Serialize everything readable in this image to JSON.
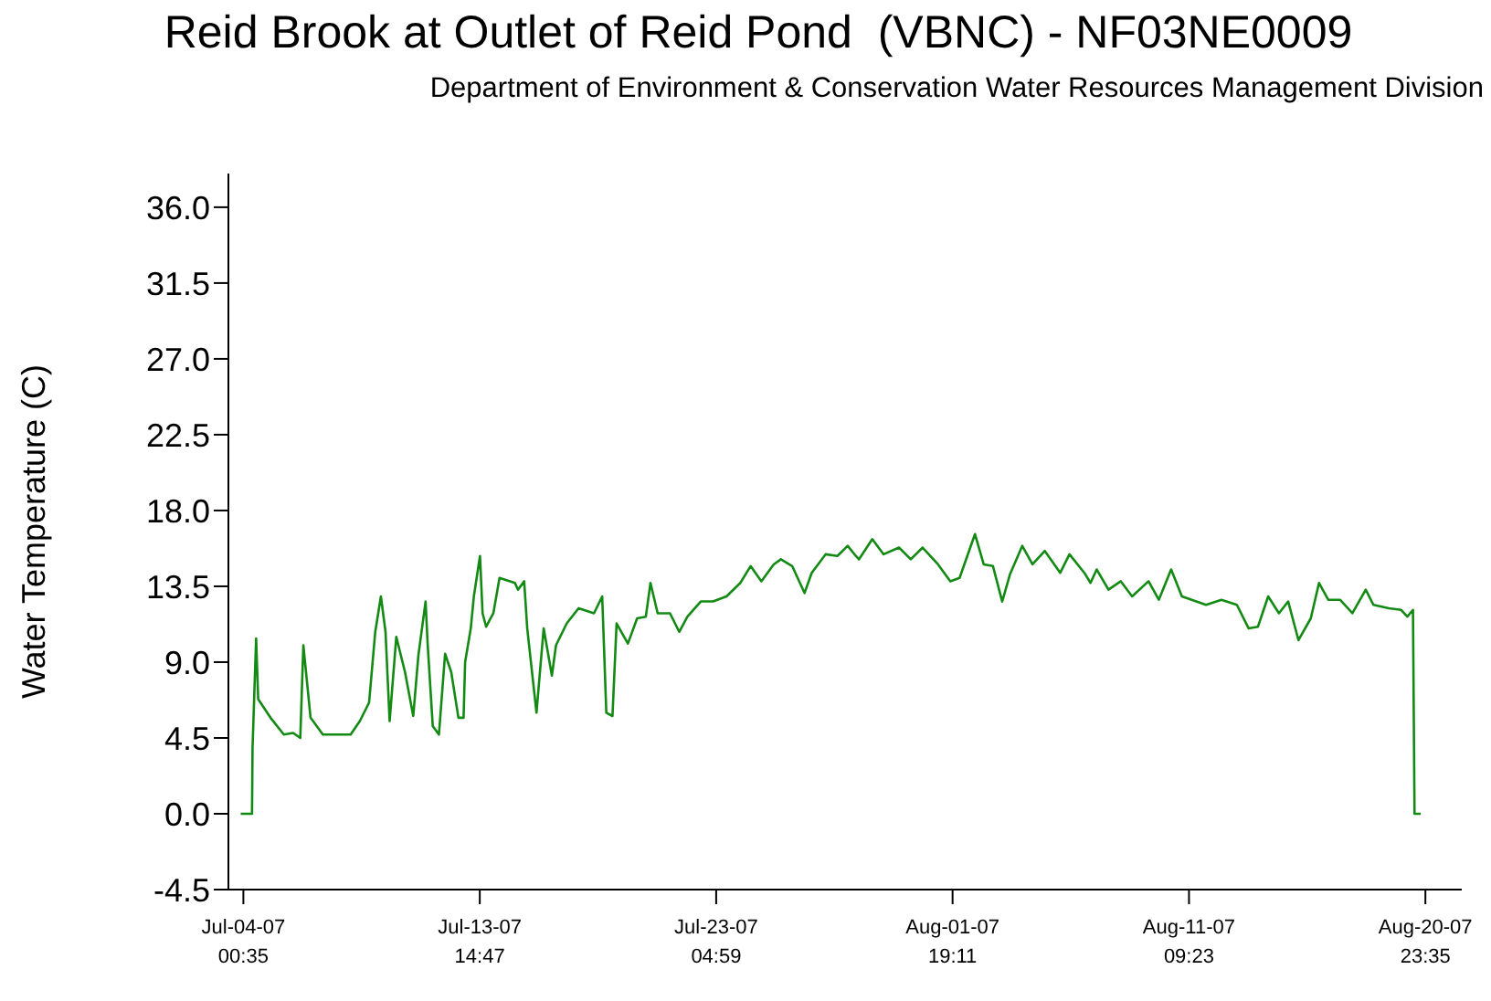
{
  "chart_data": {
    "type": "line",
    "title": "Reid Brook at Outlet of Reid Pond  (VBNC) - NF03NE0009",
    "subtitle": "Department of Environment & Conservation Water Resources Management Division",
    "ylabel": "Water Temperature (C)",
    "x": [
      "--07-03T22:00",
      "--07-04T09:00",
      "--07-04T09:30",
      "--07-04T13:00",
      "--07-04T15:00",
      "--07-05T03:00",
      "--07-05T16:00",
      "--07-06T01:00",
      "--07-06T08:00",
      "--07-06T11:00",
      "--07-06T18:00",
      "--07-07T06:00",
      "--07-08T09:00",
      "--07-08T18:00",
      "--07-09T03:00",
      "--07-09T09:00",
      "--07-09T14:30",
      "--07-09T19:00",
      "--07-09T23:00",
      "--07-10T05:30",
      "--07-10T14:00",
      "--07-10T22:00",
      "--07-11T03:00",
      "--07-11T10:00",
      "--07-11T12:00",
      "--07-11T17:00",
      "--07-11T23:00",
      "--07-12T05:00",
      "--07-12T11:00",
      "--07-12T18:00",
      "--07-12T23:00",
      "--07-13T00:30",
      "--07-13T06:00",
      "--07-13T09:00",
      "--07-13T15:00",
      "--07-13T17:30",
      "--07-13T21:00",
      "--07-14T04:00",
      "--07-14T10:00",
      "--07-15T01:00",
      "--07-15T04:00",
      "--07-15T10:00",
      "--07-15T13:00",
      "--07-15T22:00",
      "--07-16T05:00",
      "--07-16T13:00",
      "--07-16T17:00",
      "--07-17T03:30",
      "--07-17T15:00",
      "--07-18T06:00",
      "--07-18T14:00",
      "--07-18T18:00",
      "--07-19T00:00",
      "--07-19T04:00",
      "--07-19T15:00",
      "--07-20T00:00",
      "--07-20T08:30",
      "--07-20T13:00",
      "--07-20T20:00",
      "--07-21T08:00",
      "--07-21T17:00",
      "--07-22T01:00",
      "--07-22T14:00",
      "--07-23T02:00",
      "--07-23T15:00",
      "--07-24T04:30",
      "--07-24T14:30",
      "--07-25T01:00",
      "--07-25T13:00",
      "--07-25T20:00",
      "--07-26T07:00",
      "--07-26T19:00",
      "--07-27T02:00",
      "--07-27T15:30",
      "--07-28T03:00",
      "--07-28T13:00",
      "--07-28T21:00",
      "--07-29T00:00",
      "--07-29T13:00",
      "--07-30T00:00",
      "--07-30T15:00",
      "--07-31T02:30",
      "--07-31T14:00",
      "--08-01T05:00",
      "--08-01T17:00",
      "--08-02T02:00",
      "--08-02T17:00",
      "--08-03T01:30",
      "--08-03T10:30",
      "--08-03T19:30",
      "--08-04T03:00",
      "--08-04T15:00",
      "--08-05T01:00",
      "--08-05T13:00",
      "--08-06T04:00",
      "--08-06T13:00",
      "--08-07T03:30",
      "--08-07T09:30",
      "--08-07T15:30",
      "--08-08T03:00",
      "--08-08T15:00",
      "--08-09T02:00",
      "--08-09T18:00",
      "--08-10T04:00",
      "--08-10T16:00",
      "--08-11T02:30",
      "--08-12T02:00",
      "--08-12T17:00",
      "--08-13T08:00",
      "--08-13T19:30",
      "--08-14T04:30",
      "--08-14T14:30",
      "--08-15T01:00",
      "--08-15T10:00",
      "--08-15T20:00",
      "--08-16T08:00",
      "--08-16T16:00",
      "--08-17T01:00",
      "--08-17T12:30",
      "--08-18T00:30",
      "--08-18T13:30",
      "--08-18T21:00",
      "--08-19T12:00",
      "--08-20T00:00",
      "--08-20T06:00",
      "--08-20T11:30",
      "--08-20T13:00",
      "--08-20T19:00"
    ],
    "series": [
      {
        "color": "#138a13",
        "values": [
          0,
          0,
          3.9,
          10.4,
          6.8,
          5.7,
          4.7,
          4.8,
          4.5,
          10.0,
          5.7,
          4.7,
          4.7,
          5.5,
          6.6,
          10.8,
          12.9,
          10.8,
          5.5,
          10.5,
          8.4,
          5.8,
          9.4,
          12.6,
          10.1,
          5.2,
          4.7,
          9.5,
          8.4,
          5.7,
          5.7,
          9.0,
          11.0,
          12.9,
          15.3,
          11.9,
          11.1,
          11.9,
          14.0,
          13.7,
          13.3,
          13.8,
          11.0,
          6.0,
          11.0,
          8.2,
          10.0,
          11.3,
          12.2,
          11.9,
          12.9,
          6.0,
          5.8,
          11.3,
          10.1,
          11.6,
          11.7,
          13.7,
          11.9,
          11.9,
          10.8,
          11.7,
          12.6,
          12.6,
          12.9,
          13.7,
          14.7,
          13.8,
          14.8,
          15.1,
          14.7,
          13.1,
          14.3,
          15.4,
          15.3,
          15.9,
          15.3,
          15.1,
          16.3,
          15.4,
          15.8,
          15.1,
          15.8,
          14.8,
          13.8,
          14.0,
          16.6,
          14.8,
          14.7,
          12.6,
          14.2,
          15.9,
          14.8,
          15.6,
          14.3,
          15.4,
          14.3,
          13.7,
          14.5,
          13.3,
          13.8,
          12.9,
          13.8,
          12.7,
          14.5,
          12.9,
          12.4,
          12.7,
          12.4,
          11.0,
          11.1,
          12.9,
          11.9,
          12.6,
          10.3,
          11.6,
          13.7,
          12.7,
          12.7,
          11.9,
          13.3,
          12.4,
          12.2,
          12.1,
          11.7,
          12.1,
          0,
          0
        ]
      }
    ],
    "xlim": [
      "--07-03T10:00",
      "--08-22T11:00"
    ],
    "xticks": [
      {
        "value": "--07-04T00:35",
        "label": "Jul-04-07\n00:35"
      },
      {
        "value": "--07-13T14:47",
        "label": "Jul-13-07\n14:47"
      },
      {
        "value": "--07-23T04:59",
        "label": "Jul-23-07\n04:59"
      },
      {
        "value": "--08-01T19:11",
        "label": "Aug-01-07\n19:11"
      },
      {
        "value": "--08-11T09:23",
        "label": "Aug-11-07\n09:23"
      },
      {
        "value": "--08-20T23:35",
        "label": "Aug-20-07\n23:35"
      }
    ],
    "ylim": [
      -4.5,
      38
    ],
    "yticks": [
      {
        "value": -4.5,
        "label": "-4.5"
      },
      {
        "value": 0,
        "label": "0.0"
      },
      {
        "value": 4.5,
        "label": "4.5"
      },
      {
        "value": 9,
        "label": "9.0"
      },
      {
        "value": 13.5,
        "label": "13.5"
      },
      {
        "value": 18,
        "label": "18.0"
      },
      {
        "value": 22.5,
        "label": "22.5"
      },
      {
        "value": 27,
        "label": "27.0"
      },
      {
        "value": 31.5,
        "label": "31.5"
      },
      {
        "value": 36,
        "label": "36.0"
      }
    ],
    "grid": false,
    "legend": false
  }
}
